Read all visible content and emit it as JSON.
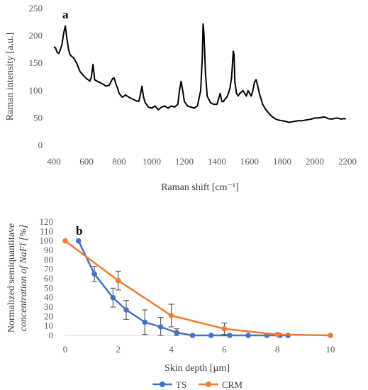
{
  "chart_data": [
    {
      "panel": "a",
      "type": "line",
      "xlabel": "Raman shift [cm⁻¹]",
      "ylabel": "Raman intensity [a.u.]",
      "xlim": [
        400,
        2200
      ],
      "ylim": [
        0,
        250
      ],
      "xticks": [
        400,
        600,
        800,
        1000,
        1200,
        1400,
        1600,
        1800,
        2000,
        2200
      ],
      "yticks": [
        0,
        50,
        100,
        150,
        200,
        250
      ],
      "grid": false,
      "series": [
        {
          "color": "#000000",
          "x": [
            400,
            410,
            420,
            430,
            440,
            450,
            460,
            470,
            480,
            490,
            500,
            520,
            540,
            560,
            580,
            600,
            610,
            620,
            630,
            640,
            645,
            650,
            660,
            680,
            700,
            720,
            740,
            760,
            770,
            780,
            790,
            800,
            820,
            840,
            860,
            880,
            900,
            920,
            930,
            940,
            950,
            960,
            980,
            1000,
            1020,
            1040,
            1060,
            1080,
            1100,
            1120,
            1140,
            1160,
            1170,
            1180,
            1190,
            1200,
            1220,
            1240,
            1260,
            1280,
            1300,
            1310,
            1315,
            1320,
            1330,
            1340,
            1360,
            1380,
            1400,
            1410,
            1420,
            1430,
            1440,
            1450,
            1460,
            1470,
            1480,
            1490,
            1500,
            1505,
            1510,
            1520,
            1530,
            1540,
            1560,
            1570,
            1580,
            1590,
            1600,
            1610,
            1620,
            1630,
            1640,
            1650,
            1660,
            1670,
            1680,
            1700,
            1720,
            1740,
            1760,
            1780,
            1800,
            1820,
            1840,
            1860,
            1880,
            1900,
            1920,
            1940,
            1960,
            1980,
            2000,
            2020,
            2040,
            2060,
            2080,
            2100,
            2120,
            2140,
            2160,
            2180,
            2190
          ],
          "y": [
            180,
            178,
            170,
            168,
            175,
            185,
            205,
            218,
            195,
            175,
            165,
            160,
            150,
            135,
            128,
            122,
            120,
            117,
            125,
            148,
            135,
            120,
            118,
            115,
            112,
            108,
            110,
            122,
            123,
            112,
            105,
            95,
            88,
            92,
            88,
            85,
            82,
            80,
            92,
            108,
            88,
            78,
            70,
            68,
            72,
            65,
            70,
            72,
            68,
            72,
            70,
            75,
            100,
            117,
            100,
            80,
            72,
            70,
            68,
            72,
            100,
            160,
            222,
            205,
            130,
            90,
            78,
            75,
            75,
            85,
            95,
            80,
            80,
            85,
            88,
            95,
            105,
            125,
            172,
            165,
            115,
            95,
            90,
            95,
            100,
            95,
            90,
            100,
            95,
            90,
            100,
            115,
            120,
            108,
            95,
            85,
            75,
            65,
            58,
            52,
            48,
            46,
            45,
            44,
            42,
            43,
            44,
            45,
            45,
            46,
            47,
            48,
            50,
            50,
            51,
            52,
            49,
            48,
            49,
            50,
            48,
            49,
            48
          ]
        }
      ]
    },
    {
      "panel": "b",
      "type": "line",
      "xlabel": "Skin depth [µm]",
      "ylabel_line1": "Normalized semiquantitave",
      "ylabel_line2": "concentration of NaFl [%]",
      "xlim": [
        0,
        10
      ],
      "ylim": [
        0,
        120
      ],
      "xticks": [
        0,
        2,
        4,
        6,
        8,
        10
      ],
      "yticks": [
        0,
        10,
        20,
        30,
        40,
        50,
        60,
        70,
        80,
        90,
        100,
        110,
        120
      ],
      "grid": false,
      "legend_position": "bottom",
      "series": [
        {
          "name": "TS",
          "color": "#4472C4",
          "x": [
            0.5,
            1.1,
            1.8,
            2.3,
            3.0,
            3.6,
            4.2,
            4.8,
            5.5,
            6.2,
            6.9,
            7.6,
            8.1,
            8.4
          ],
          "y": [
            100,
            65,
            40,
            27,
            14,
            9,
            3,
            0,
            0,
            0,
            0,
            0,
            0,
            0
          ],
          "error": [
            0,
            8,
            10,
            10,
            13,
            10,
            4,
            0,
            0,
            0,
            0,
            0,
            0,
            0
          ]
        },
        {
          "name": "CRM",
          "color": "#ED7D31",
          "x": [
            0,
            2,
            4,
            6,
            8,
            10
          ],
          "y": [
            100,
            58,
            21,
            7,
            1,
            0
          ],
          "error": [
            0,
            10,
            12,
            6,
            1,
            0
          ]
        }
      ]
    }
  ]
}
